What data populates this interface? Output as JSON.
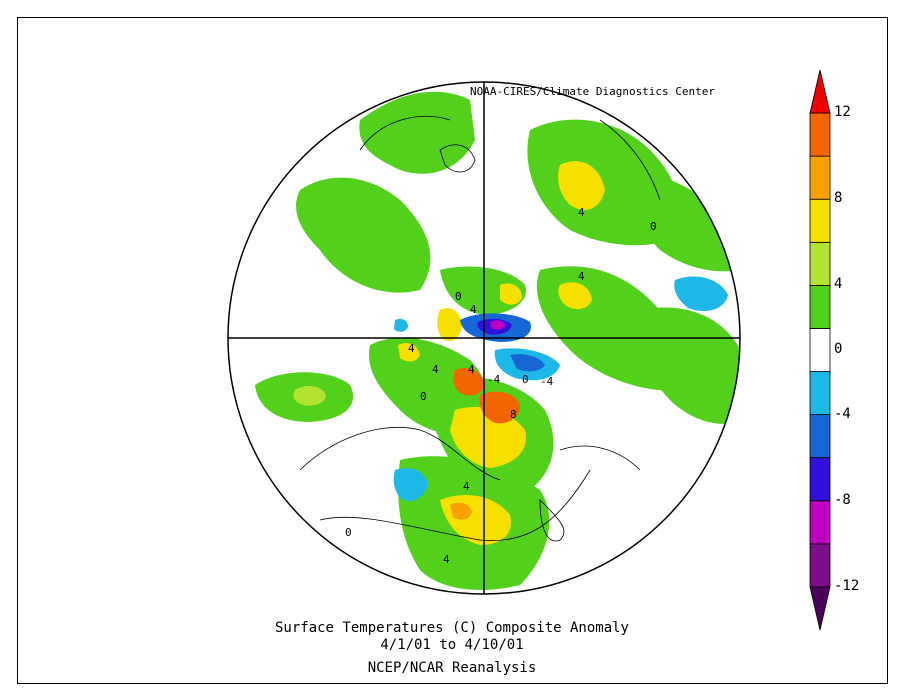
{
  "credit": "NOAA-CIRES/Climate Diagnostics Center",
  "title": "Surface Temperatures (C)   Composite Anomaly",
  "dates": "4/1/01  to 4/10/01",
  "source": "NCEP/NCAR Reanalysis",
  "colorbar": {
    "tick_labels": [
      "12",
      "8",
      "4",
      "0",
      "-4",
      "-8",
      "-12"
    ],
    "bins": [
      {
        "range": "< -12",
        "color": "#4b0059"
      },
      {
        "range": "-12 to -10",
        "color": "#7e0d8a"
      },
      {
        "range": "-10 to -8",
        "color": "#c000c0"
      },
      {
        "range": "-8 to -6",
        "color": "#2f10dc"
      },
      {
        "range": "-6 to -4",
        "color": "#1666d6"
      },
      {
        "range": "-4 to -2",
        "color": "#1eb8e8"
      },
      {
        "range": "-2 to 2",
        "color": "#ffffff"
      },
      {
        "range": "2 to 4",
        "color": "#52d01b"
      },
      {
        "range": "4 to 6",
        "color": "#b4e233"
      },
      {
        "range": "6 to 8",
        "color": "#f5e000"
      },
      {
        "range": "8 to 10",
        "color": "#f8a100"
      },
      {
        "range": "10 to 12",
        "color": "#f36500"
      },
      {
        "range": "> 12",
        "color": "#ee0000"
      }
    ]
  },
  "contour_labels": [
    "4",
    "4",
    "4",
    "4",
    "4",
    "4",
    "4",
    "4",
    "0",
    "0",
    "0",
    "0",
    "0",
    "-4",
    "-4",
    "8"
  ]
}
